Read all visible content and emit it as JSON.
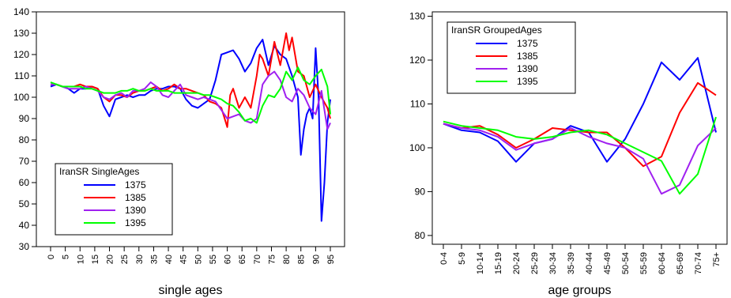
{
  "chart_data": [
    {
      "type": "line",
      "xlabel": "single ages",
      "ylabel": "",
      "x_ticks": [
        0,
        5,
        10,
        15,
        20,
        25,
        30,
        35,
        40,
        45,
        50,
        55,
        60,
        65,
        70,
        75,
        80,
        85,
        90,
        95
      ],
      "xlim": [
        0,
        95
      ],
      "ylim": [
        30,
        140
      ],
      "y_ticks": [
        30,
        40,
        50,
        60,
        70,
        80,
        90,
        100,
        110,
        120,
        130,
        140
      ],
      "grid": false,
      "legend": {
        "title": "IranSR SingleAges",
        "placement": "bottom-left"
      },
      "series": [
        {
          "name": "1375",
          "color": "#0000ff",
          "x": [
            0,
            2,
            4,
            6,
            8,
            10,
            12,
            14,
            16,
            18,
            20,
            22,
            24,
            26,
            28,
            30,
            32,
            34,
            36,
            38,
            40,
            42,
            44,
            46,
            48,
            50,
            52,
            54,
            56,
            58,
            60,
            62,
            64,
            66,
            68,
            70,
            72,
            74,
            76,
            78,
            80,
            82,
            84,
            85,
            86,
            87,
            88,
            89,
            90,
            91,
            92,
            93,
            94,
            95
          ],
          "y": [
            105,
            106,
            105,
            104,
            102,
            104,
            104,
            105,
            104,
            96,
            91,
            99,
            100,
            101,
            100,
            101,
            101,
            103,
            104,
            104,
            105,
            105,
            104,
            99,
            96,
            95,
            97,
            99,
            108,
            120,
            121,
            122,
            118,
            112,
            116,
            123,
            127,
            115,
            124,
            120,
            118,
            110,
            100,
            73,
            85,
            92,
            95,
            90,
            123,
            100,
            42,
            60,
            88,
            99
          ]
        },
        {
          "name": "1385",
          "color": "#ff0000",
          "x": [
            0,
            2,
            4,
            6,
            8,
            10,
            12,
            14,
            16,
            18,
            20,
            22,
            24,
            26,
            28,
            30,
            32,
            34,
            36,
            38,
            40,
            42,
            44,
            46,
            48,
            50,
            52,
            54,
            56,
            58,
            60,
            61,
            62,
            64,
            66,
            68,
            70,
            71,
            72,
            74,
            76,
            78,
            80,
            81,
            82,
            84,
            86,
            88,
            90,
            92,
            94,
            95
          ],
          "y": [
            106,
            106,
            105,
            105,
            105,
            106,
            105,
            105,
            104,
            100,
            98,
            101,
            101,
            100,
            102,
            103,
            103,
            104,
            105,
            103,
            104,
            106,
            104,
            104,
            103,
            102,
            101,
            98,
            97,
            95,
            86,
            101,
            104,
            95,
            100,
            95,
            110,
            120,
            118,
            110,
            126,
            115,
            130,
            122,
            128,
            112,
            110,
            100,
            106,
            100,
            95,
            90
          ]
        },
        {
          "name": "1390",
          "color": "#a020f0",
          "x": [
            0,
            2,
            4,
            6,
            8,
            10,
            12,
            14,
            16,
            18,
            20,
            22,
            24,
            26,
            28,
            30,
            32,
            34,
            36,
            38,
            40,
            42,
            44,
            46,
            48,
            50,
            52,
            54,
            56,
            58,
            60,
            62,
            64,
            66,
            68,
            70,
            72,
            74,
            76,
            78,
            80,
            82,
            84,
            86,
            88,
            90,
            92,
            94,
            95
          ],
          "y": [
            106,
            106,
            105,
            104,
            104,
            104,
            105,
            104,
            103,
            100,
            99,
            101,
            102,
            100,
            103,
            103,
            104,
            107,
            105,
            101,
            100,
            103,
            106,
            101,
            100,
            99,
            100,
            99,
            98,
            94,
            90,
            91,
            92,
            89,
            88,
            90,
            106,
            110,
            112,
            108,
            100,
            98,
            104,
            101,
            95,
            92,
            103,
            85,
            88
          ]
        },
        {
          "name": "1395",
          "color": "#00ff00",
          "x": [
            0,
            2,
            4,
            6,
            8,
            10,
            12,
            14,
            16,
            18,
            20,
            22,
            24,
            26,
            28,
            30,
            32,
            34,
            36,
            38,
            40,
            42,
            44,
            46,
            48,
            50,
            52,
            54,
            56,
            58,
            60,
            62,
            64,
            66,
            68,
            70,
            72,
            74,
            76,
            78,
            80,
            82,
            84,
            86,
            88,
            90,
            92,
            94,
            95
          ],
          "y": [
            107,
            106,
            105,
            105,
            105,
            105,
            104,
            104,
            103,
            102,
            102,
            102,
            103,
            103,
            104,
            103,
            103,
            104,
            103,
            103,
            103,
            102,
            102,
            102,
            102,
            102,
            101,
            101,
            100,
            99,
            97,
            96,
            93,
            89,
            90,
            88,
            96,
            101,
            100,
            104,
            112,
            108,
            114,
            108,
            106,
            110,
            113,
            105,
            92
          ]
        }
      ]
    },
    {
      "type": "line",
      "xlabel": "age groups",
      "ylabel": "",
      "categories": [
        "0-4",
        "5-9",
        "10-14",
        "15-19",
        "20-24",
        "25-29",
        "30-34",
        "35-39",
        "40-44",
        "45-49",
        "50-54",
        "55-59",
        "60-64",
        "65-69",
        "70-74",
        "75+"
      ],
      "ylim": [
        78,
        131
      ],
      "y_ticks": [
        80,
        90,
        100,
        110,
        120,
        130
      ],
      "grid": false,
      "legend": {
        "title": "IranSR GroupedAges",
        "placement": "top-left"
      },
      "series": [
        {
          "name": "1375",
          "color": "#0000ff",
          "values": [
            105.5,
            104,
            103.5,
            101.5,
            96.8,
            101,
            102,
            105,
            103.5,
            96.8,
            102,
            110,
            119.5,
            115.5,
            120.5,
            103.5
          ]
        },
        {
          "name": "1385",
          "color": "#ff0000",
          "values": [
            105.5,
            104.5,
            105,
            103,
            100,
            102,
            104.5,
            104,
            103.5,
            103.5,
            100,
            95.8,
            98,
            108,
            114.8,
            112
          ]
        },
        {
          "name": "1390",
          "color": "#a020f0",
          "values": [
            105.5,
            104.5,
            104,
            102.5,
            99.5,
            101,
            102,
            104.5,
            102.5,
            101,
            100,
            97.5,
            89.5,
            91.5,
            100.5,
            104.5
          ]
        },
        {
          "name": "1395",
          "color": "#00ff00",
          "values": [
            106,
            105,
            104.5,
            104,
            102.5,
            102,
            102.5,
            103.5,
            104,
            103,
            101,
            99,
            97,
            89.5,
            94,
            107
          ]
        }
      ]
    }
  ]
}
